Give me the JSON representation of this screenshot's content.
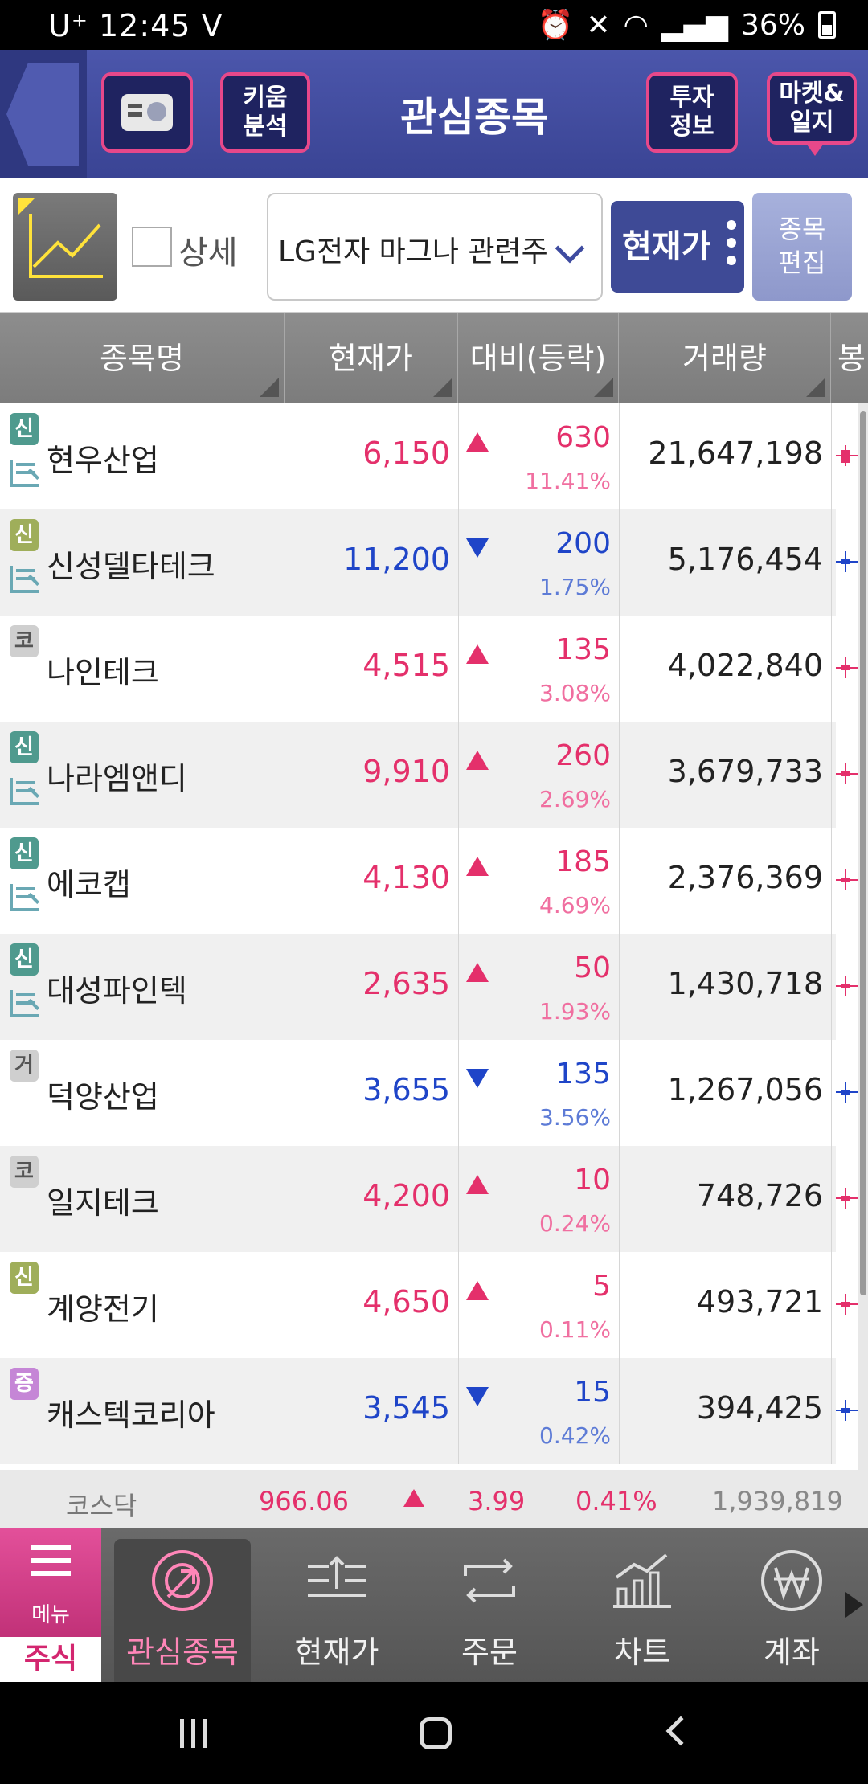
{
  "status_bar": {
    "carrier": "U⁺",
    "time": "12:45",
    "lte_badge": "V",
    "battery_pct": "36%",
    "icons": [
      "alarm-icon",
      "mute-icon",
      "wifi-icon",
      "signal-icon",
      "battery-icon"
    ]
  },
  "header": {
    "title": "관심종목",
    "kiwoom_line1": "키움",
    "kiwoom_line2": "분석",
    "invest_line1": "투자",
    "invest_line2": "정보",
    "market_line1": "마켓&",
    "market_line2": "일지"
  },
  "toolbar": {
    "detail_label": "상세",
    "group_selected": "LG전자 마그나 관련주",
    "price_mode": "현재가",
    "edit_line1": "종목",
    "edit_line2": "편집"
  },
  "table": {
    "headers": {
      "name": "종목명",
      "price": "현재가",
      "change": "대비(등락)",
      "volume": "거래량",
      "candle": "봉"
    },
    "rows": [
      {
        "badge": "신",
        "badge_type": "sin",
        "credit": true,
        "name": "현우산업",
        "price": "6,150",
        "dir": "up",
        "change": "630",
        "pct": "11.41%",
        "volume": "21,647,198"
      },
      {
        "badge": "신",
        "badge_type": "sin2",
        "credit": true,
        "name": "신성델타테크",
        "price": "11,200",
        "dir": "down",
        "change": "200",
        "pct": "1.75%",
        "volume": "5,176,454"
      },
      {
        "badge": "코",
        "badge_type": "ko",
        "credit": false,
        "name": "나인테크",
        "price": "4,515",
        "dir": "up",
        "change": "135",
        "pct": "3.08%",
        "volume": "4,022,840"
      },
      {
        "badge": "신",
        "badge_type": "sin",
        "credit": true,
        "name": "나라엠앤디",
        "price": "9,910",
        "dir": "up",
        "change": "260",
        "pct": "2.69%",
        "volume": "3,679,733"
      },
      {
        "badge": "신",
        "badge_type": "sin",
        "credit": true,
        "name": "에코캡",
        "price": "4,130",
        "dir": "up",
        "change": "185",
        "pct": "4.69%",
        "volume": "2,376,369"
      },
      {
        "badge": "신",
        "badge_type": "sin",
        "credit": true,
        "name": "대성파인텍",
        "price": "2,635",
        "dir": "up",
        "change": "50",
        "pct": "1.93%",
        "volume": "1,430,718"
      },
      {
        "badge": "거",
        "badge_type": "geo",
        "credit": false,
        "name": "덕양산업",
        "price": "3,655",
        "dir": "down",
        "change": "135",
        "pct": "3.56%",
        "volume": "1,267,056"
      },
      {
        "badge": "코",
        "badge_type": "ko",
        "credit": false,
        "name": "일지테크",
        "price": "4,200",
        "dir": "up",
        "change": "10",
        "pct": "0.24%",
        "volume": "748,726"
      },
      {
        "badge": "신",
        "badge_type": "sin2",
        "credit": false,
        "name": "계양전기",
        "price": "4,650",
        "dir": "up",
        "change": "5",
        "pct": "0.11%",
        "volume": "493,721"
      },
      {
        "badge": "증",
        "badge_type": "jeung",
        "credit": false,
        "name": "캐스텍코리아",
        "price": "3,545",
        "dir": "down",
        "change": "15",
        "pct": "0.42%",
        "volume": "394,425"
      }
    ]
  },
  "index_bar": {
    "name": "코스닥",
    "value": "966.06",
    "change": "3.99",
    "pct": "0.41%",
    "volume": "1,939,819"
  },
  "bottom_nav": {
    "menu_label": "메뉴",
    "stock_tab": "주식",
    "items": [
      "관심종목",
      "현재가",
      "주문",
      "차트",
      "계좌"
    ]
  },
  "colors": {
    "up": "#e4306b",
    "down": "#1f45c8",
    "header_bg": "#4b56ab",
    "accent_pink": "#e7488a"
  }
}
